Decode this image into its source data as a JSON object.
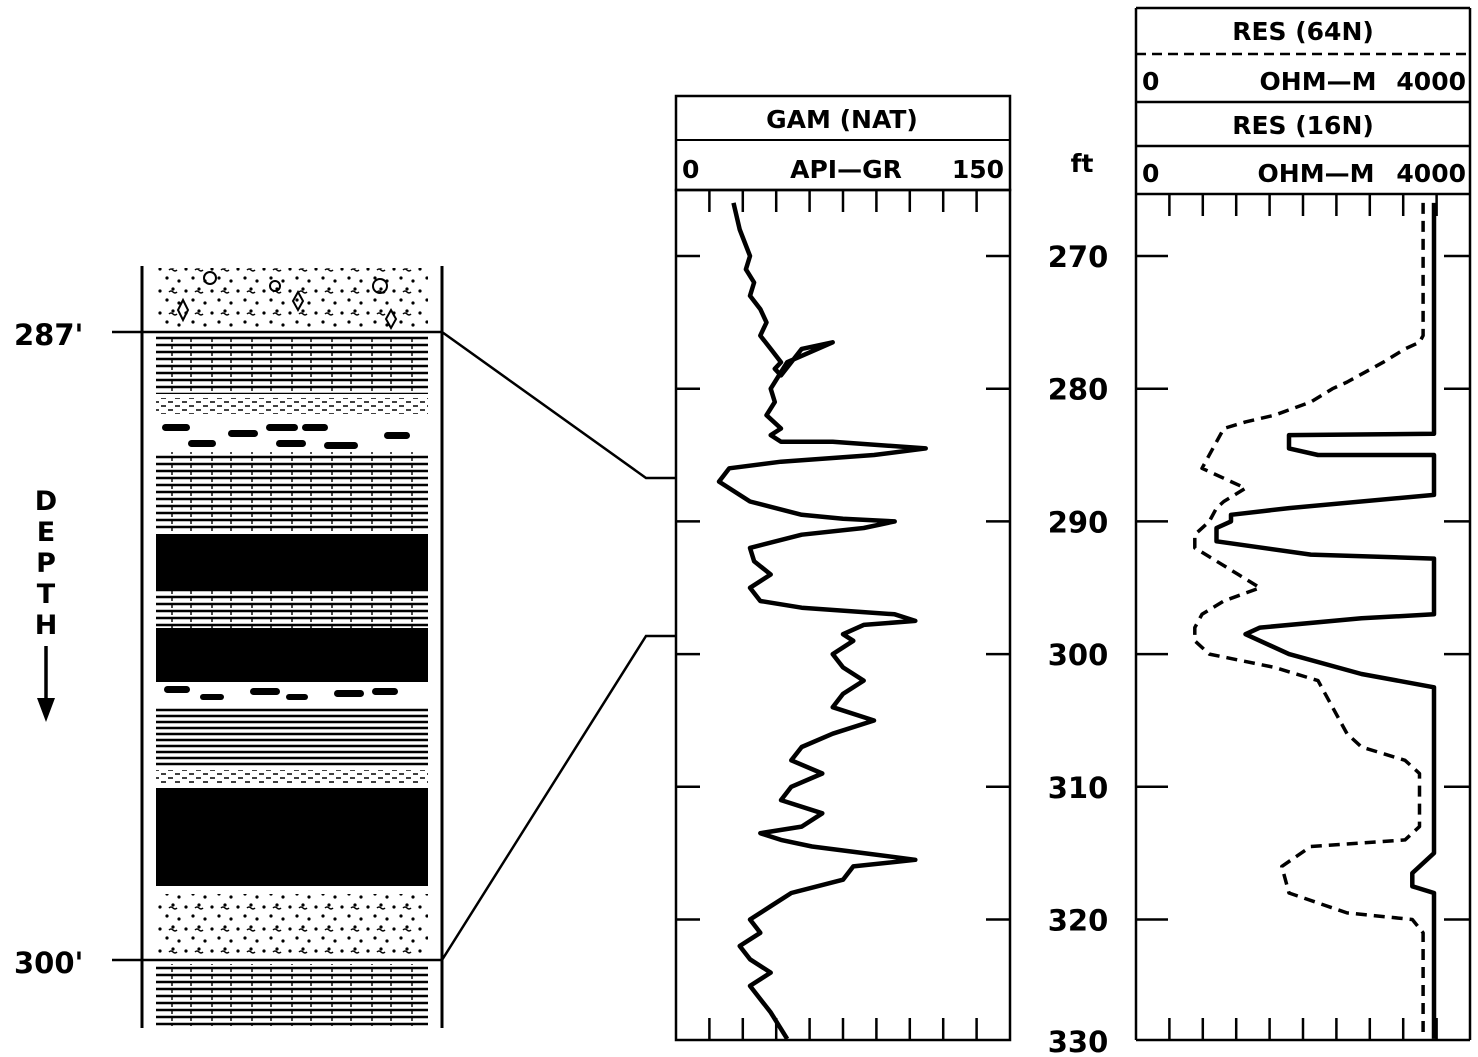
{
  "lithology": {
    "top_label": "287'",
    "bottom_label": "300'",
    "depth_label": [
      "D",
      "E",
      "P",
      "T",
      "H"
    ]
  },
  "depth_axis": {
    "unit": "ft",
    "ticks": [
      "270",
      "280",
      "290",
      "300",
      "310",
      "320",
      "330"
    ]
  },
  "gamma_track": {
    "title": "GAM (NAT)",
    "scale_min": "0",
    "scale_unit": "API—GR",
    "scale_max": "150"
  },
  "res_track": {
    "title_64n": "RES (64N)",
    "scale_64n_min": "0",
    "scale_64n_unit": "OHM—M",
    "scale_64n_max": "4000",
    "title_16n": "RES (16N)",
    "scale_16n_min": "0",
    "scale_16n_unit": "OHM—M",
    "scale_16n_max": "4000"
  },
  "chart_data": [
    {
      "type": "line",
      "title": "GAM (NAT)",
      "xlabel": "API—GR",
      "ylabel": "ft",
      "xlim": [
        0,
        150
      ],
      "ylim": [
        330,
        265
      ],
      "series": [
        {
          "name": "GAM (NAT)",
          "x": [
            22,
            25,
            30,
            28,
            32,
            30,
            35,
            38,
            35,
            40,
            45,
            42,
            45,
            55,
            70,
            48,
            40,
            42,
            38,
            45,
            40,
            45,
            50,
            70,
            115,
            90,
            45,
            20,
            15,
            30,
            55,
            75,
            100,
            85,
            55,
            30,
            32,
            40,
            30,
            35,
            55,
            100,
            110,
            85,
            75,
            80,
            70,
            75,
            85,
            75,
            70,
            90,
            70,
            55,
            50,
            65,
            50,
            45,
            65,
            55,
            35,
            45,
            60,
            85,
            110,
            80,
            75,
            50,
            40,
            30,
            35,
            25,
            30,
            40,
            30,
            35,
            40,
            48
          ],
          "y": [
            266,
            268,
            270,
            271,
            272,
            273,
            274,
            275,
            276,
            277,
            278,
            278.5,
            279,
            277,
            276.5,
            278,
            280,
            281,
            282,
            283,
            283.5,
            284,
            284,
            284,
            284.5,
            285,
            285.5,
            286,
            287,
            288.5,
            289.5,
            289.8,
            290,
            290.5,
            291,
            292,
            293,
            294,
            295,
            296,
            296.5,
            297,
            297.5,
            297.8,
            298.5,
            299,
            300,
            301,
            302,
            303,
            304,
            305,
            306,
            307,
            308,
            309,
            310,
            311,
            312,
            313,
            313.5,
            314,
            314.5,
            315,
            315.5,
            316,
            317,
            318,
            319,
            320,
            321,
            322,
            323,
            324,
            325,
            326,
            327,
            329
          ]
        }
      ]
    },
    {
      "type": "line",
      "title": "RES (64N) / RES (16N)",
      "xlabel": "OHM—M",
      "ylabel": "ft",
      "xlim": [
        0,
        4000
      ],
      "ylim": [
        330,
        265
      ],
      "series": [
        {
          "name": "RES (64N)",
          "x": [
            3850,
            3850,
            3850,
            3850,
            3850,
            3850,
            3850,
            3800,
            3600,
            3300,
            2800,
            2600,
            2300,
            1800,
            1400,
            1100,
            1000,
            800,
            1200,
            1400,
            1100,
            1000,
            900,
            700,
            700,
            1300,
            1600,
            1100,
            800,
            700,
            700,
            900,
            1800,
            2400,
            2600,
            2700,
            2800,
            3000,
            3600,
            3800,
            3800,
            3800,
            3600,
            2300,
            1900,
            2000,
            2800,
            3700,
            3850,
            3850,
            3850,
            3850
          ],
          "y": [
            266,
            268,
            270,
            272,
            274,
            275,
            276,
            276.5,
            277,
            278,
            279.5,
            280,
            281,
            282,
            282.5,
            283,
            284,
            286,
            287,
            287.5,
            288.5,
            289,
            290,
            291,
            292,
            294,
            295,
            296,
            297,
            298,
            299,
            300,
            301,
            302,
            304,
            305,
            306,
            307,
            308,
            309,
            310,
            313,
            314,
            314.5,
            316,
            318,
            319.5,
            320,
            321,
            323,
            326,
            329
          ]
        },
        {
          "name": "RES (16N)",
          "x": [
            4000,
            4000,
            4000,
            4000,
            4000,
            4000,
            4000,
            4000,
            4000,
            4000,
            4000,
            4000,
            4000,
            4000,
            4000,
            2000,
            2000,
            2400,
            4000,
            4000,
            4000,
            4000,
            2000,
            1200,
            1200,
            1000,
            1000,
            2300,
            4000,
            4000,
            4000,
            4000,
            4000,
            4000,
            3000,
            1600,
            1400,
            2000,
            3000,
            4000,
            4000,
            4000,
            4000,
            4000,
            4000,
            4000,
            3700,
            3700,
            4000,
            4000,
            4000,
            4000
          ],
          "y": [
            266,
            268,
            270,
            272,
            274,
            276,
            278,
            280,
            281,
            282,
            282.5,
            282.8,
            283,
            283.2,
            283.4,
            283.5,
            284.5,
            285,
            285,
            286,
            287,
            288,
            289,
            289.5,
            290,
            290.5,
            291.5,
            292.5,
            292.8,
            294,
            295,
            296,
            296.8,
            297,
            297.3,
            298,
            298.5,
            300,
            301.5,
            302.5,
            304,
            306,
            308,
            310,
            312,
            315,
            316.5,
            317.5,
            318,
            320,
            325,
            329
          ]
        }
      ]
    }
  ]
}
